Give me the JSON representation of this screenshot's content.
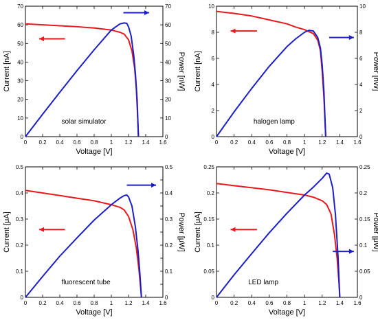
{
  "colors": {
    "current": "#e8191c",
    "power": "#1a1ec4",
    "axis": "#000000"
  },
  "chart_data": [
    {
      "type": "line",
      "annotation": "solar simulator",
      "xlabel": "Voltage [V]",
      "ylabel": "Current [nA]",
      "y2label": "Power [nW]",
      "xlim": [
        0,
        1.6
      ],
      "ylim": [
        0,
        70
      ],
      "y2lim": [
        0,
        70
      ],
      "xticks": [
        0,
        0.2,
        0.4,
        0.6,
        0.8,
        1,
        1.2,
        1.4,
        1.6
      ],
      "xtick_labels": [
        "0",
        "0.2",
        "0.4",
        "0.6",
        "0.8",
        "1",
        "1.2",
        "1.4",
        "1.6"
      ],
      "yticks": [
        0,
        10,
        20,
        30,
        40,
        50,
        60,
        70
      ],
      "ytick_labels": [
        "0",
        "10",
        "20",
        "30",
        "40",
        "50",
        "60",
        "70"
      ],
      "y2ticks": [
        0,
        10,
        20,
        30,
        40,
        50,
        60,
        70
      ],
      "y2tick_labels": [
        "0",
        "10",
        "20",
        "30",
        "40",
        "50",
        "60",
        "70"
      ],
      "grid": false,
      "series": [
        {
          "axis": "left",
          "color": "current",
          "x": [
            0,
            0.2,
            0.4,
            0.6,
            0.8,
            1.0,
            1.1,
            1.15,
            1.2,
            1.24,
            1.27,
            1.29,
            1.3,
            1.31,
            1.315
          ],
          "y": [
            60.5,
            60.0,
            59.5,
            59.0,
            58.3,
            57.2,
            56.0,
            55.0,
            52.0,
            46.0,
            37.0,
            26.0,
            17.0,
            6.0,
            0
          ]
        },
        {
          "axis": "right",
          "color": "power",
          "x": [
            0,
            0.2,
            0.4,
            0.6,
            0.8,
            1.0,
            1.1,
            1.15,
            1.18,
            1.2,
            1.23,
            1.26,
            1.28,
            1.3,
            1.315
          ],
          "y": [
            0,
            12.0,
            23.8,
            35.4,
            46.6,
            57.2,
            60.5,
            61.0,
            60.8,
            59.0,
            54.0,
            44.0,
            34.0,
            20.0,
            0
          ]
        }
      ],
      "arrows": [
        {
          "color": "current",
          "dir": "left",
          "x1": 0.46,
          "x2": 0.16,
          "y": 52.5,
          "axis": "left"
        },
        {
          "color": "power",
          "dir": "right",
          "x1": 1.14,
          "x2": 1.44,
          "y": 66.5,
          "axis": "right"
        }
      ],
      "annotation_at": {
        "x": 0.42,
        "y": 7
      }
    },
    {
      "type": "line",
      "annotation": "halogen lamp",
      "xlabel": "Voltage [V]",
      "ylabel": "Current [nA]",
      "y2label": "Power [nW]",
      "xlim": [
        0,
        1.6
      ],
      "ylim": [
        0,
        10
      ],
      "y2lim": [
        0,
        10
      ],
      "xticks": [
        0,
        0.2,
        0.4,
        0.6,
        0.8,
        1,
        1.2,
        1.4,
        1.6
      ],
      "xtick_labels": [
        "0",
        "0.2",
        "0.4",
        "0.6",
        "0.8",
        "1",
        "1.2",
        "1.4",
        "1.6"
      ],
      "yticks": [
        0,
        2,
        4,
        6,
        8,
        10
      ],
      "ytick_labels": [
        "0",
        "2",
        "4",
        "6",
        "8",
        "10"
      ],
      "y2ticks": [
        0,
        2,
        4,
        6,
        8,
        10
      ],
      "y2tick_labels": [
        "0",
        "2",
        "4",
        "6",
        "8",
        "10"
      ],
      "grid": false,
      "series": [
        {
          "axis": "left",
          "color": "current",
          "x": [
            0,
            0.2,
            0.4,
            0.6,
            0.8,
            0.9,
            1.0,
            1.1,
            1.15,
            1.18,
            1.2,
            1.22,
            1.23,
            1.24
          ],
          "y": [
            9.6,
            9.45,
            9.25,
            8.95,
            8.65,
            8.4,
            8.2,
            7.9,
            7.4,
            6.6,
            5.0,
            3.0,
            1.5,
            0
          ]
        },
        {
          "axis": "right",
          "color": "power",
          "x": [
            0,
            0.2,
            0.4,
            0.6,
            0.8,
            0.9,
            1.0,
            1.05,
            1.1,
            1.15,
            1.18,
            1.2,
            1.22,
            1.24
          ],
          "y": [
            0,
            1.9,
            3.7,
            5.4,
            6.9,
            7.5,
            8.0,
            8.15,
            8.1,
            7.6,
            6.8,
            5.5,
            3.5,
            0
          ]
        }
      ],
      "arrows": [
        {
          "color": "current",
          "dir": "left",
          "x1": 0.46,
          "x2": 0.16,
          "y": 8.1,
          "axis": "left"
        },
        {
          "color": "power",
          "dir": "right",
          "x1": 1.28,
          "x2": 1.56,
          "y": 7.6,
          "axis": "right"
        }
      ],
      "annotation_at": {
        "x": 0.42,
        "y": 1.0
      }
    },
    {
      "type": "line",
      "annotation": "fluorescent tube",
      "xlabel": "Voltage [V]",
      "ylabel": "Current [μA]",
      "y2label": "Power [μW]",
      "xlim": [
        0,
        1.6
      ],
      "ylim": [
        0,
        0.5
      ],
      "y2lim": [
        0,
        0.5
      ],
      "xticks": [
        0,
        0.2,
        0.4,
        0.6,
        0.8,
        1,
        1.2,
        1.4,
        1.6
      ],
      "xtick_labels": [
        "0",
        "0.2",
        "0.4",
        "0.6",
        "0.8",
        "1",
        "1.2",
        "1.4",
        "1.6"
      ],
      "yticks": [
        0,
        0.1,
        0.2,
        0.3,
        0.4,
        0.5
      ],
      "ytick_labels": [
        "0",
        "0.1",
        "0.2",
        "0.3",
        "0.4",
        "0.5"
      ],
      "y2ticks": [
        0,
        0.05,
        0.1,
        0.15,
        0.2,
        0.25,
        0.3,
        0.35,
        0.4,
        0.45,
        0.5
      ],
      "y2tick_labels": [
        "0",
        "",
        "0.1",
        "",
        "0.2",
        "",
        "0.3",
        "",
        "0.4",
        "",
        "0.5"
      ],
      "grid": false,
      "series": [
        {
          "axis": "left",
          "color": "current",
          "x": [
            0,
            0.2,
            0.4,
            0.6,
            0.8,
            1.0,
            1.1,
            1.15,
            1.2,
            1.25,
            1.29,
            1.32,
            1.34,
            1.35
          ],
          "y": [
            0.41,
            0.4,
            0.39,
            0.38,
            0.37,
            0.355,
            0.345,
            0.335,
            0.31,
            0.26,
            0.19,
            0.11,
            0.04,
            0
          ]
        },
        {
          "axis": "right",
          "color": "power",
          "x": [
            0,
            0.2,
            0.4,
            0.6,
            0.8,
            1.0,
            1.1,
            1.15,
            1.18,
            1.2,
            1.24,
            1.28,
            1.31,
            1.33,
            1.35
          ],
          "y": [
            0,
            0.08,
            0.158,
            0.228,
            0.296,
            0.355,
            0.38,
            0.39,
            0.392,
            0.385,
            0.35,
            0.27,
            0.18,
            0.1,
            0
          ]
        }
      ],
      "arrows": [
        {
          "color": "current",
          "dir": "left",
          "x1": 0.46,
          "x2": 0.16,
          "y": 0.26,
          "axis": "left"
        },
        {
          "color": "power",
          "dir": "right",
          "x1": 1.18,
          "x2": 1.52,
          "y": 0.43,
          "axis": "right"
        }
      ],
      "annotation_at": {
        "x": 0.42,
        "y": 0.05
      }
    },
    {
      "type": "line",
      "annotation": "LED lamp",
      "xlabel": "Voltage [V]",
      "ylabel": "Current [μA]",
      "y2label": "Power [μW]",
      "xlim": [
        0,
        1.6
      ],
      "ylim": [
        0,
        0.25
      ],
      "y2lim": [
        0,
        0.25
      ],
      "xticks": [
        0,
        0.2,
        0.4,
        0.6,
        0.8,
        1,
        1.2,
        1.4,
        1.6
      ],
      "xtick_labels": [
        "0",
        "0.2",
        "0.4",
        "0.6",
        "0.8",
        "1",
        "1.2",
        "1.4",
        "1.6"
      ],
      "yticks": [
        0,
        0.05,
        0.1,
        0.15,
        0.2,
        0.25
      ],
      "ytick_labels": [
        "0",
        "0.05",
        "0.1",
        "0.15",
        "0.2",
        "0.25"
      ],
      "y2ticks": [
        0,
        0.05,
        0.1,
        0.15,
        0.2,
        0.25
      ],
      "y2tick_labels": [
        "0",
        "0.05",
        "0.1",
        "0.15",
        "0.2",
        "0.25"
      ],
      "grid": false,
      "series": [
        {
          "axis": "left",
          "color": "current",
          "x": [
            0,
            0.2,
            0.4,
            0.6,
            0.8,
            1.0,
            1.1,
            1.2,
            1.25,
            1.3,
            1.34,
            1.37,
            1.39,
            1.4
          ],
          "y": [
            0.218,
            0.214,
            0.21,
            0.206,
            0.201,
            0.196,
            0.192,
            0.185,
            0.178,
            0.16,
            0.12,
            0.075,
            0.03,
            0
          ]
        },
        {
          "axis": "right",
          "color": "power",
          "x": [
            0,
            0.2,
            0.4,
            0.6,
            0.8,
            1.0,
            1.1,
            1.2,
            1.25,
            1.28,
            1.32,
            1.35,
            1.38,
            1.4
          ],
          "y": [
            0,
            0.043,
            0.084,
            0.124,
            0.161,
            0.196,
            0.211,
            0.228,
            0.238,
            0.236,
            0.21,
            0.16,
            0.08,
            0
          ]
        }
      ],
      "arrows": [
        {
          "color": "current",
          "dir": "left",
          "x1": 0.46,
          "x2": 0.16,
          "y": 0.13,
          "axis": "left"
        },
        {
          "color": "power",
          "dir": "right",
          "x1": 1.32,
          "x2": 1.56,
          "y": 0.088,
          "axis": "right"
        }
      ],
      "annotation_at": {
        "x": 0.36,
        "y": 0.025
      }
    }
  ]
}
